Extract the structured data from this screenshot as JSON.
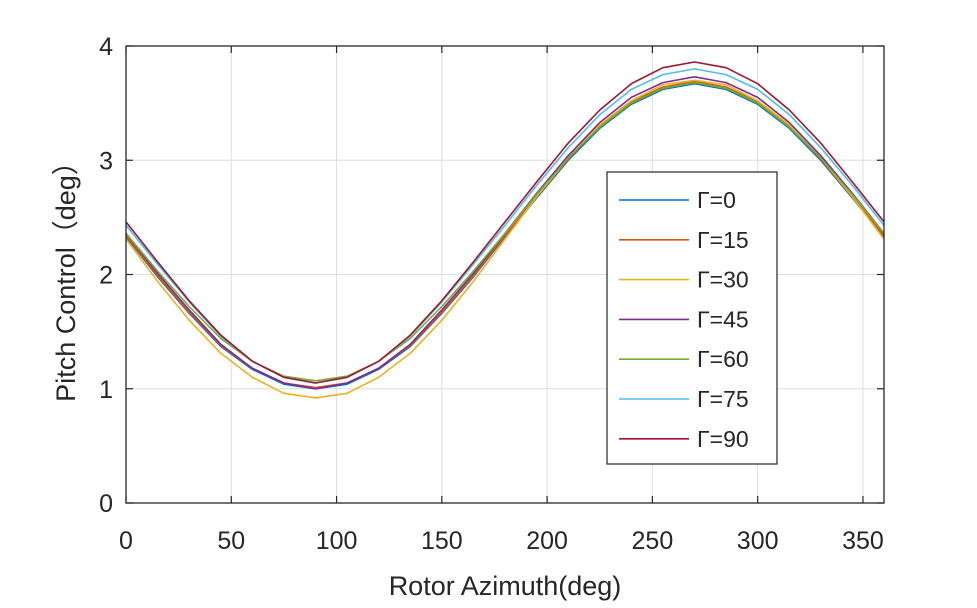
{
  "chart_data": {
    "type": "line",
    "title": "",
    "xlabel": "Rotor Azimuth(deg)",
    "ylabel": "Pitch Control（deg）",
    "xlim": [
      0,
      360
    ],
    "ylim": [
      0,
      4
    ],
    "xticks": [
      0,
      50,
      100,
      150,
      200,
      250,
      300,
      350
    ],
    "yticks": [
      0,
      1,
      2,
      3,
      4
    ],
    "xtick_labels": [
      "0",
      "50",
      "100",
      "150",
      "200",
      "250",
      "300",
      "350"
    ],
    "ytick_labels": [
      "0",
      "1",
      "2",
      "3",
      "4"
    ],
    "grid": true,
    "legend_position": "right-center",
    "x": [
      0,
      15,
      30,
      45,
      60,
      75,
      90,
      105,
      120,
      135,
      150,
      165,
      180,
      195,
      210,
      225,
      240,
      255,
      270,
      285,
      300,
      315,
      330,
      345,
      360
    ],
    "series": [
      {
        "name": "Γ=0",
        "color": "#0072BD",
        "values": [
          2.33,
          1.98,
          1.66,
          1.37,
          1.17,
          1.04,
          1.0,
          1.04,
          1.17,
          1.37,
          1.66,
          1.98,
          2.33,
          2.67,
          3.0,
          3.28,
          3.49,
          3.62,
          3.67,
          3.62,
          3.49,
          3.28,
          3.0,
          2.67,
          2.33
        ]
      },
      {
        "name": "Γ=15",
        "color": "#D95319",
        "values": [
          2.34,
          1.99,
          1.67,
          1.38,
          1.18,
          1.05,
          1.01,
          1.05,
          1.18,
          1.38,
          1.67,
          1.99,
          2.34,
          2.68,
          3.01,
          3.3,
          3.51,
          3.64,
          3.69,
          3.64,
          3.51,
          3.3,
          3.01,
          2.68,
          2.34
        ]
      },
      {
        "name": "Γ=30",
        "color": "#EDB120",
        "values": [
          2.31,
          1.94,
          1.6,
          1.31,
          1.1,
          0.96,
          0.92,
          0.96,
          1.1,
          1.31,
          1.6,
          1.94,
          2.31,
          2.68,
          3.02,
          3.31,
          3.52,
          3.66,
          3.7,
          3.66,
          3.52,
          3.31,
          3.02,
          2.68,
          2.31
        ]
      },
      {
        "name": "Γ=45",
        "color": "#7E2F8E",
        "values": [
          2.36,
          2.01,
          1.69,
          1.39,
          1.18,
          1.05,
          1.0,
          1.05,
          1.18,
          1.39,
          1.69,
          2.01,
          2.36,
          2.71,
          3.04,
          3.33,
          3.55,
          3.68,
          3.73,
          3.68,
          3.55,
          3.33,
          3.04,
          2.71,
          2.36
        ]
      },
      {
        "name": "Γ=60",
        "color": "#77AC30",
        "values": [
          2.36,
          2.03,
          1.72,
          1.44,
          1.24,
          1.11,
          1.07,
          1.11,
          1.24,
          1.44,
          1.72,
          2.03,
          2.36,
          2.7,
          3.02,
          3.29,
          3.5,
          3.63,
          3.68,
          3.63,
          3.5,
          3.29,
          3.02,
          2.7,
          2.36
        ]
      },
      {
        "name": "Γ=75",
        "color": "#4DBEEE",
        "values": [
          2.43,
          2.09,
          1.76,
          1.46,
          1.24,
          1.1,
          1.05,
          1.1,
          1.24,
          1.46,
          1.76,
          2.09,
          2.43,
          2.78,
          3.11,
          3.4,
          3.62,
          3.75,
          3.8,
          3.75,
          3.62,
          3.4,
          3.11,
          2.78,
          2.43
        ]
      },
      {
        "name": "Γ=90",
        "color": "#A2142F",
        "values": [
          2.46,
          2.11,
          1.77,
          1.47,
          1.24,
          1.1,
          1.05,
          1.1,
          1.24,
          1.47,
          1.77,
          2.11,
          2.46,
          2.81,
          3.15,
          3.44,
          3.67,
          3.81,
          3.86,
          3.81,
          3.67,
          3.44,
          3.15,
          2.81,
          2.46
        ]
      }
    ]
  }
}
